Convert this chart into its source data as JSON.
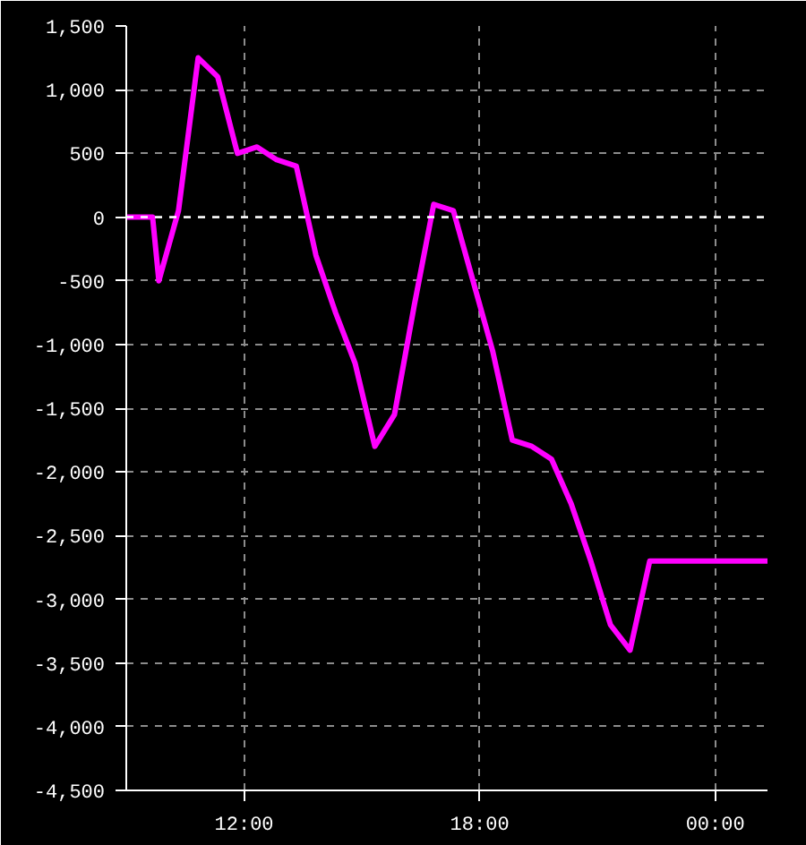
{
  "chart_data": {
    "type": "line",
    "x": [
      9.0,
      9.67,
      9.83,
      10.33,
      10.83,
      11.33,
      11.83,
      12.33,
      12.83,
      13.33,
      13.83,
      14.33,
      14.83,
      15.33,
      15.83,
      16.33,
      16.83,
      17.33,
      17.83,
      18.33,
      18.83,
      19.33,
      19.83,
      20.33,
      20.83,
      21.33,
      21.83,
      22.33,
      25.33
    ],
    "series": [
      {
        "color": "#ff00ff",
        "values": [
          0,
          0,
          -500,
          50,
          1250,
          1100,
          500,
          550,
          450,
          400,
          -300,
          -750,
          -1150,
          -1800,
          -1550,
          -700,
          100,
          50,
          -500,
          -1050,
          -1750,
          -1800,
          -1900,
          -2250,
          -2700,
          -3200,
          -3400,
          -2700,
          -2700
        ]
      }
    ],
    "xlim": [
      9,
      25.33
    ],
    "ylim": [
      -4500,
      1500
    ],
    "xticks": [
      {
        "value": 12,
        "label": "12:00"
      },
      {
        "value": 18,
        "label": "18:00"
      },
      {
        "value": 24,
        "label": "00:00"
      }
    ],
    "yticks": [
      {
        "value": -4500,
        "label": "-4,500"
      },
      {
        "value": -4000,
        "label": "-4,000"
      },
      {
        "value": -3500,
        "label": "-3,500"
      },
      {
        "value": -3000,
        "label": "-3,000"
      },
      {
        "value": -2500,
        "label": "-2,500"
      },
      {
        "value": -2000,
        "label": "-2,000"
      },
      {
        "value": -1500,
        "label": "-1,500"
      },
      {
        "value": -1000,
        "label": "-1,000"
      },
      -500,
      0,
      500,
      {
        "value": 1000,
        "label": "1,000"
      },
      {
        "value": 1500,
        "label": "1,500"
      }
    ],
    "grid": true,
    "line_style": "solid",
    "ref_lines": [
      {
        "axis": "y",
        "value": 0,
        "color": "#ffffff",
        "line_style": "dashed"
      }
    ]
  }
}
